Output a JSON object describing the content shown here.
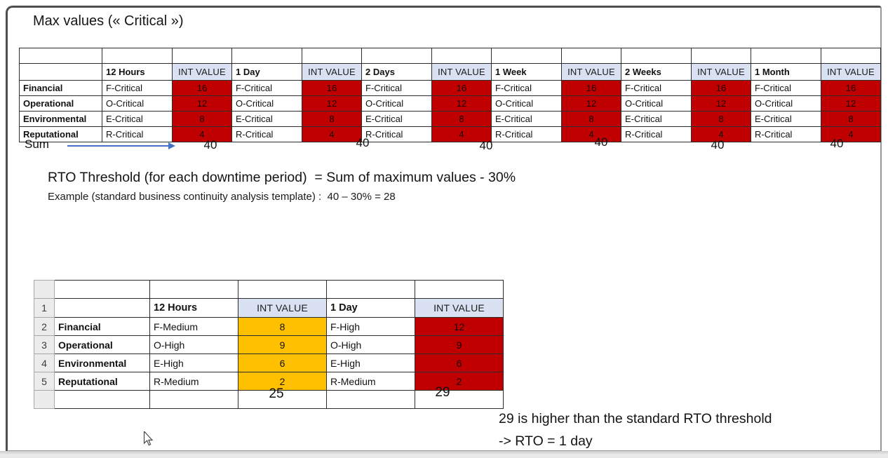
{
  "title": "Max values (« Critical »)",
  "table1": {
    "int_value_label": "INT VALUE",
    "periods": [
      "12 Hours",
      "1 Day",
      "2 Days",
      "1 Week",
      "2 Weeks",
      "1 Month"
    ],
    "rows": [
      {
        "category": "Financial",
        "rating": "F-Critical",
        "value": "16"
      },
      {
        "category": "Operational",
        "rating": "O-Critical",
        "value": "12"
      },
      {
        "category": "Environmental",
        "rating": "E-Critical",
        "value": "8"
      },
      {
        "category": "Reputational",
        "rating": "R-Critical",
        "value": "4"
      }
    ]
  },
  "sum_row": {
    "label": "Sum",
    "values": [
      "40",
      "40",
      "40",
      "40",
      "40",
      "40"
    ]
  },
  "threshold": {
    "line1": "RTO Threshold (for each downtime period)  = Sum of maximum values - 30%",
    "line2": "Example (standard business continuity analysis template) :  40 – 30% = 28"
  },
  "table2": {
    "int_value_label": "INT VALUE",
    "row_numbers": [
      "1",
      "2",
      "3",
      "4",
      "5"
    ],
    "periods": [
      "12 Hours",
      "1 Day"
    ],
    "rows": [
      {
        "category": "Financial",
        "cells": [
          {
            "rating": "F-Medium",
            "value": "8",
            "color": "orange"
          },
          {
            "rating": "F-High",
            "value": "12",
            "color": "red"
          }
        ]
      },
      {
        "category": "Operational",
        "cells": [
          {
            "rating": "O-High",
            "value": "9",
            "color": "orange"
          },
          {
            "rating": "O-High",
            "value": "9",
            "color": "red"
          }
        ]
      },
      {
        "category": "Environmental",
        "cells": [
          {
            "rating": "E-High",
            "value": "6",
            "color": "orange"
          },
          {
            "rating": "E-High",
            "value": "6",
            "color": "red"
          }
        ]
      },
      {
        "category": "Reputational",
        "cells": [
          {
            "rating": "R-Medium",
            "value": "2",
            "color": "orange"
          },
          {
            "rating": "R-Medium",
            "value": "2",
            "color": "red"
          }
        ]
      }
    ],
    "sums": [
      "25",
      "29"
    ]
  },
  "conclusion": {
    "line1": "29 is higher than the standard RTO threshold",
    "line2": "-> RTO = 1 day"
  },
  "colors": {
    "critical_red": "#C00000",
    "medium_orange": "#FFC000",
    "int_header_fill": "#D9E1F2",
    "arrow_blue": "#4472C4",
    "active_cell_green": "#217346"
  }
}
